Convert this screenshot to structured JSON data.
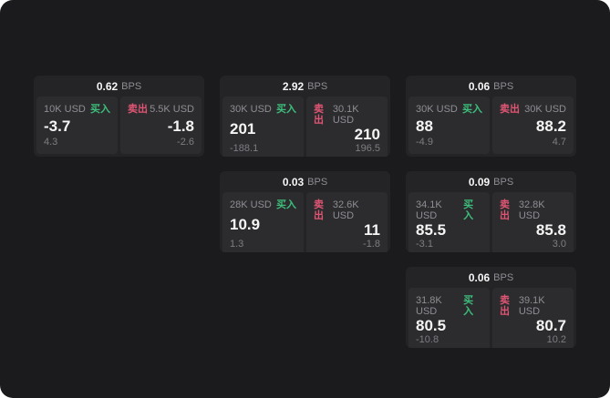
{
  "colors": {
    "window_bg": "#1b1b1d",
    "card_bg": "#242427",
    "panel_bg": "#2c2c2f",
    "text_bright": "#f5f5f5",
    "text_muted": "#8e8e93",
    "text_dim": "#7e7e82",
    "buy_green": "#3dbe7b",
    "sell_red": "#e05573"
  },
  "labels": {
    "bps_suffix": "BPS",
    "buy": "买入",
    "sell": "卖出"
  },
  "cards": [
    {
      "row": 1,
      "col": 1,
      "bps": "0.62",
      "buy": {
        "volume": "10K USD",
        "price": "-3.7",
        "delta": "4.3"
      },
      "sell": {
        "volume": "5.5K USD",
        "price": "-1.8",
        "delta": "-2.6"
      }
    },
    {
      "row": 1,
      "col": 2,
      "bps": "2.92",
      "buy": {
        "volume": "30K USD",
        "price": "201",
        "delta": "-188.1"
      },
      "sell": {
        "volume": "30.1K USD",
        "price": "210",
        "delta": "196.5"
      }
    },
    {
      "row": 1,
      "col": 3,
      "bps": "0.06",
      "buy": {
        "volume": "30K USD",
        "price": "88",
        "delta": "-4.9"
      },
      "sell": {
        "volume": "30K USD",
        "price": "88.2",
        "delta": "4.7"
      }
    },
    {
      "row": 2,
      "col": 2,
      "bps": "0.03",
      "buy": {
        "volume": "28K USD",
        "price": "10.9",
        "delta": "1.3"
      },
      "sell": {
        "volume": "32.6K USD",
        "price": "11",
        "delta": "-1.8"
      }
    },
    {
      "row": 2,
      "col": 3,
      "bps": "0.09",
      "buy": {
        "volume": "34.1K USD",
        "price": "85.5",
        "delta": "-3.1"
      },
      "sell": {
        "volume": "32.8K USD",
        "price": "85.8",
        "delta": "3.0"
      }
    },
    {
      "row": 3,
      "col": 3,
      "bps": "0.06",
      "buy": {
        "volume": "31.8K USD",
        "price": "80.5",
        "delta": "-10.8"
      },
      "sell": {
        "volume": "39.1K USD",
        "price": "80.7",
        "delta": "10.2"
      }
    }
  ]
}
